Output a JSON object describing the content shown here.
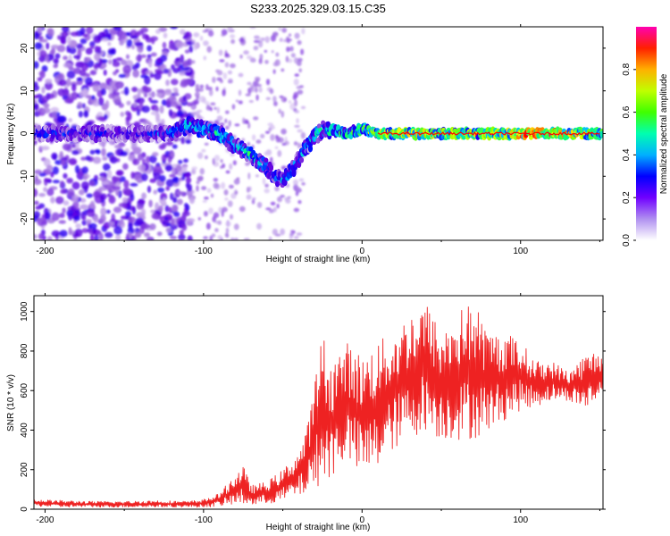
{
  "title": "S233.2025.329.03.15.C35",
  "chart_data": [
    {
      "type": "heatmap",
      "title": "S233.2025.329.03.15.C35",
      "xlabel": "Height of straight line (km)",
      "ylabel": "Frequency (Hz)",
      "xlim": [
        -207,
        152
      ],
      "ylim": [
        -25,
        25
      ],
      "xticks": [
        -200,
        -100,
        0,
        100
      ],
      "xtick_labels": [
        "-200",
        "-100",
        "0",
        "100"
      ],
      "yticks": [
        -20,
        -10,
        0,
        10,
        20
      ],
      "ytick_labels": [
        "-20",
        "-10",
        "0",
        "10",
        "20"
      ],
      "colorbar": {
        "label": "Normalized spectral amplitude",
        "range": [
          0,
          1
        ],
        "ticks": [
          0.0,
          0.2,
          0.4,
          0.6,
          0.8
        ],
        "tick_labels": [
          "0.0",
          "0.2",
          "0.4",
          "0.6",
          "0.8"
        ],
        "colors": [
          "#ffffff",
          "#a070e0",
          "#6000e0",
          "#0000ff",
          "#00c0ff",
          "#00ff80",
          "#80ff00",
          "#ffff00",
          "#ff8000",
          "#ff0000",
          "#ff00c0"
        ]
      },
      "ridge_x": [
        -200,
        -190,
        -180,
        -170,
        -160,
        -150,
        -140,
        -130,
        -120,
        -110,
        -100,
        -90,
        -80,
        -70,
        -60,
        -55,
        -50,
        -45,
        -40,
        -35,
        -30,
        -25,
        -20,
        -10,
        0,
        10,
        20,
        30,
        40,
        50,
        60,
        70,
        80,
        90,
        100,
        110,
        120,
        130,
        140,
        150
      ],
      "ridge_y": [
        0,
        0,
        0,
        0,
        0,
        0,
        0,
        0,
        0,
        2,
        1,
        0,
        -3,
        -5,
        -8,
        -10,
        -11,
        -9,
        -6,
        -3,
        -1,
        1,
        1,
        0,
        1,
        0,
        0,
        0,
        0,
        0,
        0,
        0,
        0,
        0,
        0,
        0,
        0,
        0,
        0,
        0
      ],
      "ridge_amplitude": [
        0.35,
        0.35,
        0.3,
        0.35,
        0.3,
        0.3,
        0.3,
        0.35,
        0.4,
        0.5,
        0.45,
        0.5,
        0.45,
        0.5,
        0.45,
        0.4,
        0.4,
        0.45,
        0.4,
        0.45,
        0.5,
        0.5,
        0.55,
        0.55,
        0.6,
        0.65,
        0.7,
        0.75,
        0.75,
        0.75,
        0.7,
        0.7,
        0.7,
        0.75,
        0.85,
        0.9,
        0.9,
        0.8,
        0.7,
        0.6
      ]
    },
    {
      "type": "line",
      "xlabel": "Height of straight line (km)",
      "ylabel": "SNR (10 * v/v)",
      "xlim": [
        -207,
        152
      ],
      "ylim": [
        0,
        1080
      ],
      "xticks": [
        -200,
        -100,
        0,
        100
      ],
      "xtick_labels": [
        "-200",
        "-100",
        "0",
        "100"
      ],
      "yticks": [
        0,
        200,
        400,
        600,
        800,
        1000
      ],
      "ytick_labels": [
        "0",
        "200",
        "400",
        "600",
        "800",
        "1000"
      ],
      "line_color": "#ee2222",
      "series": [
        {
          "name": "SNR",
          "x": [
            -207,
            -190,
            -170,
            -150,
            -130,
            -110,
            -100,
            -90,
            -80,
            -75,
            -70,
            -60,
            -50,
            -40,
            -35,
            -30,
            -25,
            -20,
            -10,
            0,
            10,
            20,
            30,
            40,
            50,
            60,
            70,
            80,
            90,
            100,
            110,
            120,
            130,
            140,
            152
          ],
          "y_lower": [
            15,
            10,
            10,
            10,
            10,
            10,
            10,
            15,
            20,
            20,
            20,
            25,
            40,
            60,
            80,
            100,
            140,
            150,
            250,
            150,
            200,
            300,
            350,
            400,
            350,
            350,
            350,
            400,
            450,
            500,
            520,
            550,
            550,
            500,
            550
          ],
          "y_upper": [
            50,
            45,
            40,
            40,
            45,
            40,
            50,
            80,
            180,
            220,
            120,
            140,
            200,
            300,
            400,
            650,
            900,
            750,
            850,
            780,
            850,
            900,
            1000,
            1060,
            900,
            1000,
            1060,
            900,
            900,
            850,
            750,
            750,
            700,
            780,
            820
          ]
        }
      ]
    }
  ]
}
